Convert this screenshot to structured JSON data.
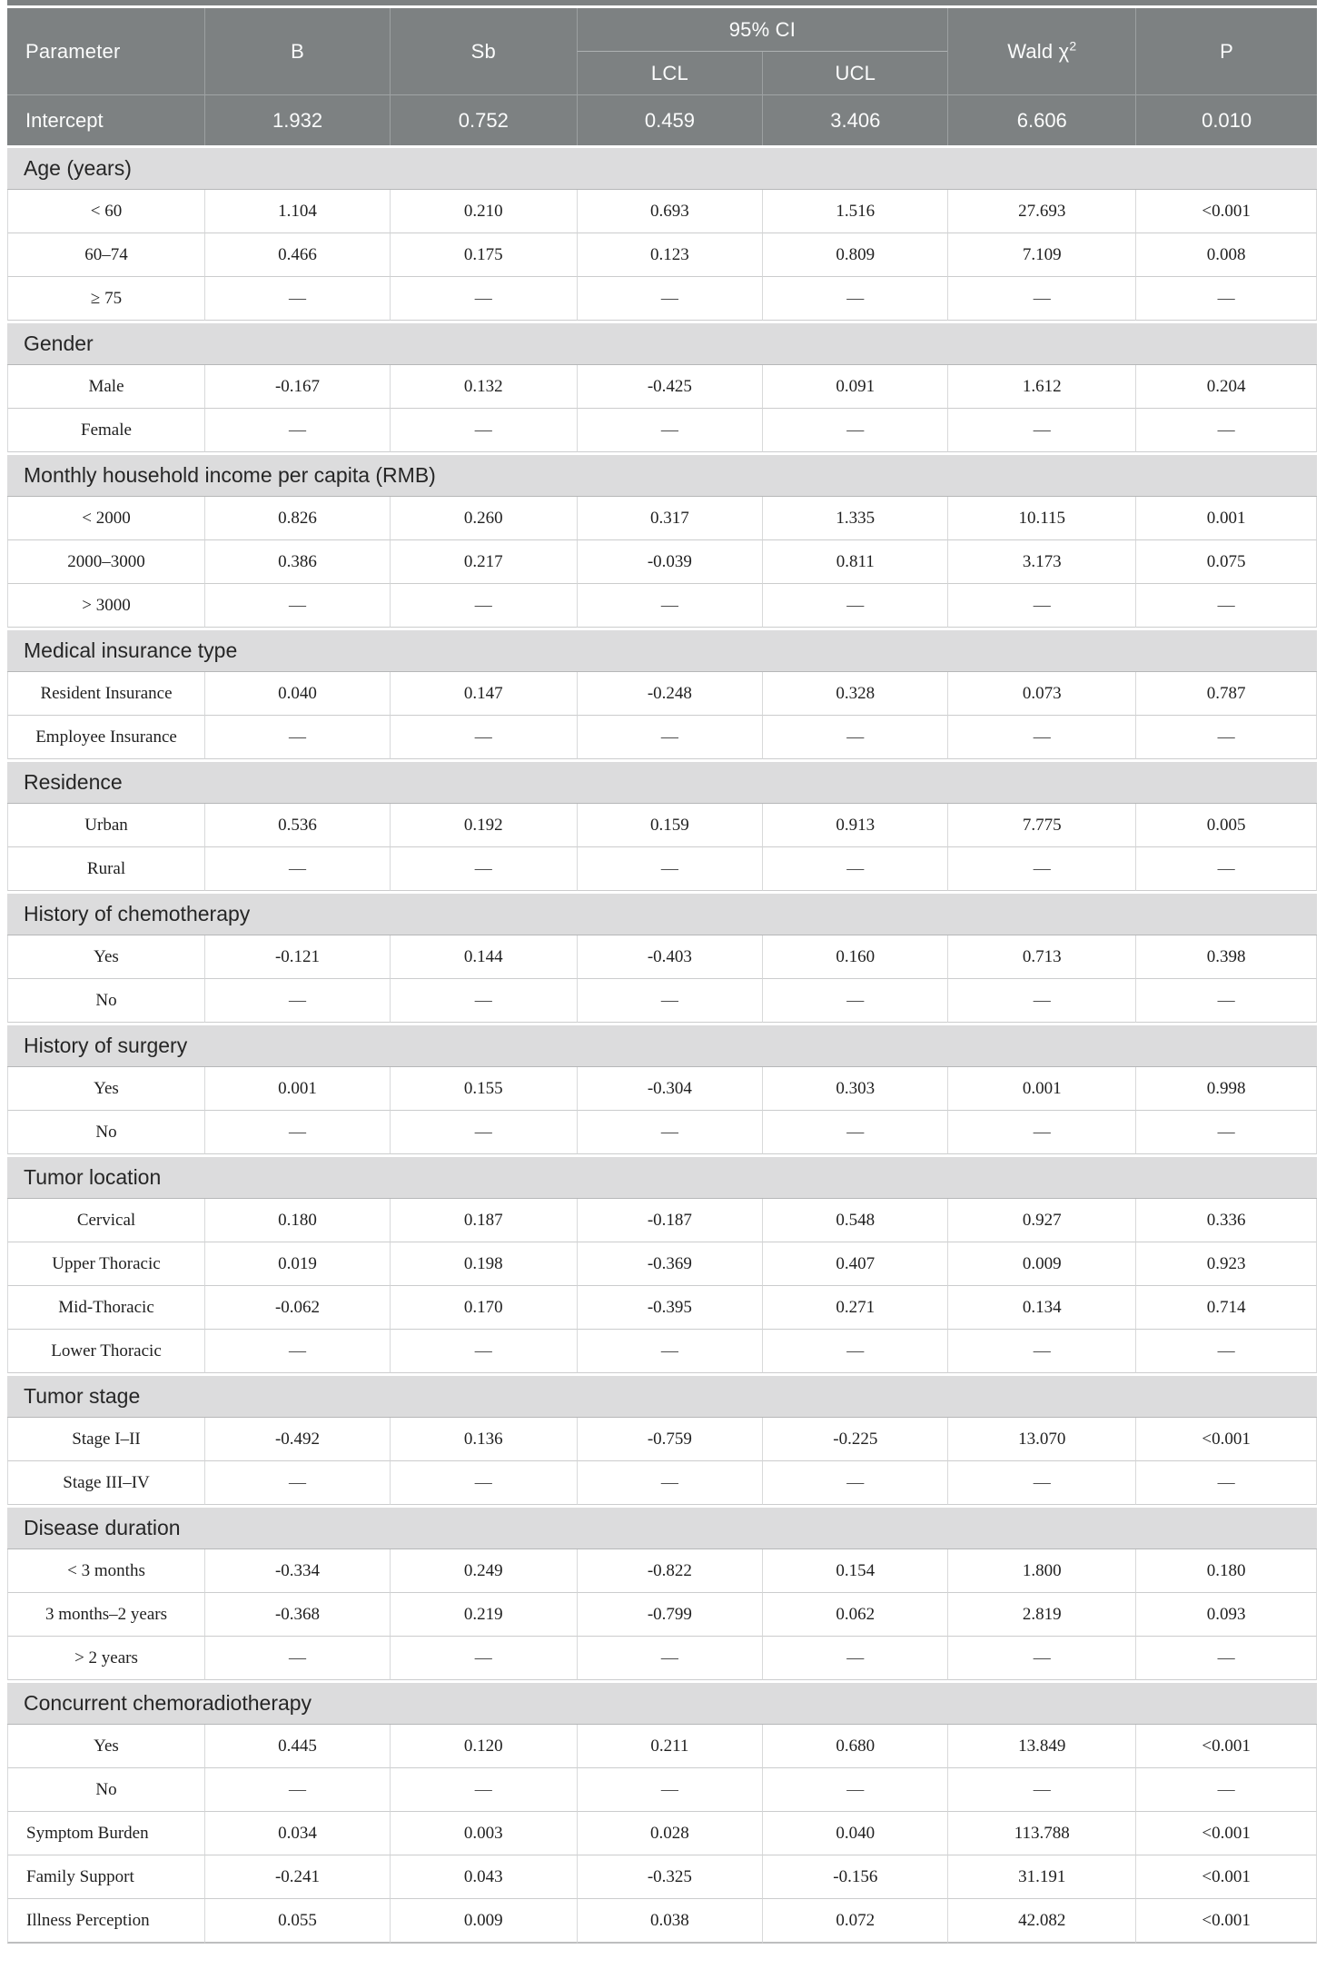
{
  "table": {
    "header": {
      "parameter": "Parameter",
      "b": "B",
      "sb": "Sb",
      "ci_group": "95% CI",
      "lcl": "LCL",
      "ucl": "UCL",
      "wald_base": "Wald χ",
      "wald_sup": "2",
      "p": "P"
    },
    "column_keys": [
      "b",
      "sb",
      "lcl",
      "ucl",
      "wald-chi2",
      "p"
    ],
    "intercept": {
      "label": "Intercept",
      "values": [
        "1.932",
        "0.752",
        "0.459",
        "3.406",
        "6.606",
        "0.010"
      ]
    },
    "sections": [
      {
        "title": "Age (years)",
        "rows": [
          {
            "label": "< 60",
            "values": [
              "1.104",
              "0.210",
              "0.693",
              "1.516",
              "27.693",
              "<0.001"
            ]
          },
          {
            "label": "60–74",
            "values": [
              "0.466",
              "0.175",
              "0.123",
              "0.809",
              "7.109",
              "0.008"
            ]
          },
          {
            "label": "≥ 75",
            "values": [
              "—",
              "—",
              "—",
              "—",
              "—",
              "—"
            ]
          }
        ]
      },
      {
        "title": "Gender",
        "rows": [
          {
            "label": "Male",
            "values": [
              "-0.167",
              "0.132",
              "-0.425",
              "0.091",
              "1.612",
              "0.204"
            ]
          },
          {
            "label": "Female",
            "values": [
              "—",
              "—",
              "—",
              "—",
              "—",
              "—"
            ]
          }
        ]
      },
      {
        "title": "Monthly household income per capita (RMB)",
        "rows": [
          {
            "label": "< 2000",
            "values": [
              "0.826",
              "0.260",
              "0.317",
              "1.335",
              "10.115",
              "0.001"
            ]
          },
          {
            "label": "2000–3000",
            "values": [
              "0.386",
              "0.217",
              "-0.039",
              "0.811",
              "3.173",
              "0.075"
            ]
          },
          {
            "label": "> 3000",
            "values": [
              "—",
              "—",
              "—",
              "—",
              "—",
              "—"
            ]
          }
        ]
      },
      {
        "title": "Medical insurance type",
        "rows": [
          {
            "label": "Resident Insurance",
            "values": [
              "0.040",
              "0.147",
              "-0.248",
              "0.328",
              "0.073",
              "0.787"
            ]
          },
          {
            "label": "Employee Insurance",
            "values": [
              "—",
              "—",
              "—",
              "—",
              "—",
              "—"
            ]
          }
        ]
      },
      {
        "title": "Residence",
        "rows": [
          {
            "label": "Urban",
            "values": [
              "0.536",
              "0.192",
              "0.159",
              "0.913",
              "7.775",
              "0.005"
            ]
          },
          {
            "label": "Rural",
            "values": [
              "—",
              "—",
              "—",
              "—",
              "—",
              "—"
            ]
          }
        ]
      },
      {
        "title": "History of chemotherapy",
        "rows": [
          {
            "label": "Yes",
            "values": [
              "-0.121",
              "0.144",
              "-0.403",
              "0.160",
              "0.713",
              "0.398"
            ]
          },
          {
            "label": "No",
            "values": [
              "—",
              "—",
              "—",
              "—",
              "—",
              "—"
            ]
          }
        ]
      },
      {
        "title": "History of surgery",
        "rows": [
          {
            "label": "Yes",
            "values": [
              "0.001",
              "0.155",
              "-0.304",
              "0.303",
              "0.001",
              "0.998"
            ]
          },
          {
            "label": "No",
            "values": [
              "—",
              "—",
              "—",
              "—",
              "—",
              "—"
            ]
          }
        ]
      },
      {
        "title": "Tumor location",
        "rows": [
          {
            "label": "Cervical",
            "values": [
              "0.180",
              "0.187",
              "-0.187",
              "0.548",
              "0.927",
              "0.336"
            ]
          },
          {
            "label": "Upper Thoracic",
            "values": [
              "0.019",
              "0.198",
              "-0.369",
              "0.407",
              "0.009",
              "0.923"
            ]
          },
          {
            "label": "Mid-Thoracic",
            "values": [
              "-0.062",
              "0.170",
              "-0.395",
              "0.271",
              "0.134",
              "0.714"
            ]
          },
          {
            "label": "Lower Thoracic",
            "values": [
              "—",
              "—",
              "—",
              "—",
              "—",
              "—"
            ]
          }
        ]
      },
      {
        "title": "Tumor stage",
        "rows": [
          {
            "label": "Stage I–II",
            "values": [
              "-0.492",
              "0.136",
              "-0.759",
              "-0.225",
              "13.070",
              "<0.001"
            ]
          },
          {
            "label": "Stage III–IV",
            "values": [
              "—",
              "—",
              "—",
              "—",
              "—",
              "—"
            ]
          }
        ]
      },
      {
        "title": "Disease duration",
        "rows": [
          {
            "label": "< 3 months",
            "values": [
              "-0.334",
              "0.249",
              "-0.822",
              "0.154",
              "1.800",
              "0.180"
            ]
          },
          {
            "label": "3 months–2 years",
            "values": [
              "-0.368",
              "0.219",
              "-0.799",
              "0.062",
              "2.819",
              "0.093"
            ]
          },
          {
            "label": "> 2 years",
            "values": [
              "—",
              "—",
              "—",
              "—",
              "—",
              "—"
            ]
          }
        ]
      },
      {
        "title": "Concurrent chemoradiotherapy",
        "rows": [
          {
            "label": "Yes",
            "values": [
              "0.445",
              "0.120",
              "0.211",
              "0.680",
              "13.849",
              "<0.001"
            ]
          },
          {
            "label": "No",
            "values": [
              "—",
              "—",
              "—",
              "—",
              "—",
              "—"
            ]
          }
        ]
      }
    ],
    "footer_rows": [
      {
        "label": "Symptom Burden",
        "values": [
          "0.034",
          "0.003",
          "0.028",
          "0.040",
          "113.788",
          "<0.001"
        ]
      },
      {
        "label": "Family Support",
        "values": [
          "-0.241",
          "0.043",
          "-0.325",
          "-0.156",
          "31.191",
          "<0.001"
        ]
      },
      {
        "label": "Illness Perception",
        "values": [
          "0.055",
          "0.009",
          "0.038",
          "0.072",
          "42.082",
          "<0.001"
        ]
      }
    ],
    "dash": "—",
    "colors": {
      "header_bg": "#7d8182",
      "header_text": "#fbfcfc",
      "section_bg": "#dcdcdd",
      "row_border": "#cbcccd",
      "column_divider": "#d8d9da",
      "header_divider": "#9ca0a1",
      "data_text": "#1f1f1f"
    }
  }
}
